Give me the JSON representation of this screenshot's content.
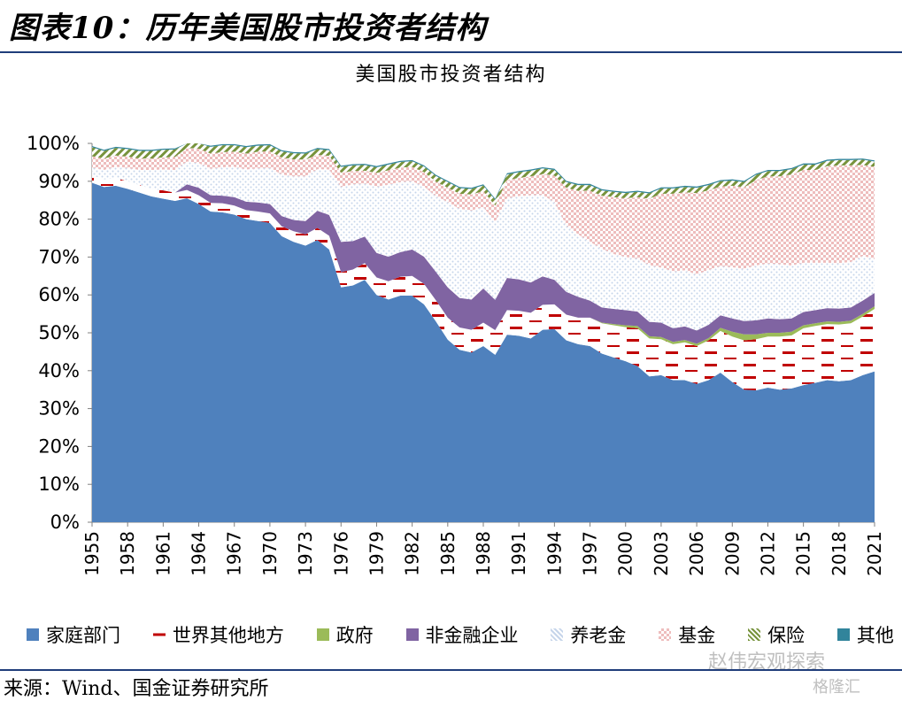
{
  "header": {
    "title": "图表10：历年美国股市投资者结构"
  },
  "source": "来源：Wind、国金证券研究所",
  "watermark": {
    "text": "赵伟宏观探索",
    "logo": "格隆汇"
  },
  "chart_data": {
    "type": "area",
    "stacked": true,
    "title": "美国股市投资者结构",
    "xlabel": "",
    "ylabel": "",
    "ylim": [
      0,
      100
    ],
    "y_ticks": [
      "0%",
      "10%",
      "20%",
      "30%",
      "40%",
      "50%",
      "60%",
      "70%",
      "80%",
      "90%",
      "100%"
    ],
    "x_ticks": [
      "1955",
      "1958",
      "1961",
      "1964",
      "1967",
      "1970",
      "1973",
      "1976",
      "1979",
      "1982",
      "1985",
      "1988",
      "1991",
      "1994",
      "1997",
      "2000",
      "2003",
      "2006",
      "2009",
      "2012",
      "2015",
      "2018",
      "2021"
    ],
    "legend_position": "bottom",
    "x_start": 1955,
    "x_end": 2021,
    "series": [
      {
        "name": "家庭部门",
        "color": "#4f81bd",
        "pattern": "solid",
        "values": [
          89.6,
          88.5,
          88.8,
          88,
          87,
          86,
          85.4,
          84.8,
          85.5,
          84,
          82,
          81.8,
          81.2,
          80,
          79.5,
          79,
          75.5,
          74,
          73,
          74.5,
          72,
          62,
          62.5,
          64,
          60,
          58.8,
          59.8,
          59.8,
          57.5,
          53,
          48.2,
          45.5,
          44.8,
          46.5,
          44.2,
          49.5,
          49.2,
          48.5,
          50.8,
          51,
          48,
          47,
          46.5,
          44.5,
          43.5,
          42.5,
          41.2,
          38.5,
          38.8,
          37.5,
          37.5,
          36.5,
          37.5,
          39.5,
          37,
          35,
          34.8,
          35.5,
          35,
          35.3,
          36.2,
          36.8,
          37.5,
          37.2,
          37.5,
          38.8,
          39.8
        ]
      },
      {
        "name": "世界其他地方",
        "color": "#c00000",
        "pattern": "dash",
        "values": [
          2,
          2,
          2,
          2,
          2,
          2,
          2.2,
          2.2,
          2.2,
          2.3,
          2.3,
          2.4,
          2.4,
          2.4,
          2.5,
          2.5,
          2.6,
          2.8,
          3,
          3.2,
          3.6,
          4,
          4.2,
          4.4,
          4.6,
          4.8,
          5,
          5.2,
          5.4,
          5.6,
          5.8,
          5.9,
          6,
          6.2,
          6.5,
          6.5,
          6.6,
          6.8,
          6.6,
          6.5,
          6.8,
          7,
          7.5,
          8,
          8.5,
          9,
          10,
          10,
          9.5,
          9.5,
          10,
          10,
          10.5,
          11,
          12,
          13,
          13.5,
          13.5,
          14,
          14,
          15,
          15,
          14.8,
          15,
          15,
          15.5,
          16.5
        ]
      },
      {
        "name": "政府",
        "color": "#9bbb59",
        "pattern": "solid",
        "values": [
          0,
          0,
          0,
          0,
          0,
          0,
          0,
          0,
          0,
          0,
          0,
          0,
          0,
          0,
          0,
          0,
          0,
          0,
          0,
          0,
          0,
          0,
          0,
          0,
          0,
          0,
          0,
          0,
          0,
          0,
          0,
          0,
          0,
          0,
          0,
          0,
          0,
          0,
          0,
          0,
          0,
          0,
          0,
          0.2,
          0.3,
          0.5,
          0.6,
          0.6,
          0.6,
          0.6,
          0.6,
          0.6,
          0.6,
          0.8,
          1.3,
          1.6,
          1.3,
          1,
          1,
          1,
          0.8,
          0.7,
          0.7,
          0.7,
          0.7,
          0.7,
          0.7
        ]
      },
      {
        "name": "非金融企业",
        "color": "#8064a2",
        "pattern": "solid",
        "values": [
          0,
          0,
          0,
          0,
          0,
          0,
          0,
          0,
          1.5,
          2,
          2,
          2,
          2.2,
          2.2,
          2.4,
          2.5,
          2.7,
          3,
          3.5,
          4.5,
          5.5,
          8,
          7.5,
          7,
          6.5,
          6.5,
          6.5,
          7,
          7.2,
          7.5,
          8,
          7.8,
          8,
          9,
          8,
          8.5,
          8.3,
          8,
          7.5,
          6.5,
          6,
          5.5,
          4.5,
          4,
          4,
          4,
          3.8,
          3.8,
          3.8,
          3.6,
          3.6,
          3.5,
          3.5,
          3.3,
          3.5,
          3.5,
          3.7,
          3.8,
          3.6,
          3.5,
          3.5,
          3.5,
          3.5,
          3.5,
          3.5,
          3.5,
          3.5
        ]
      },
      {
        "name": "养老金",
        "color": "#dce6f2",
        "pattern": "dots-blue",
        "values": [
          2,
          2.5,
          3,
          3.5,
          4,
          5,
          5.5,
          6,
          6,
          6.5,
          7,
          7.5,
          8,
          8.5,
          9,
          9.5,
          11,
          11.5,
          11.8,
          11,
          12,
          14.5,
          15,
          14,
          17.5,
          19,
          18.5,
          18,
          18.5,
          20,
          22.5,
          23.5,
          23.5,
          21.5,
          20.5,
          21,
          22,
          23,
          21.5,
          20.5,
          17.5,
          16.5,
          15.5,
          15.5,
          14.5,
          14,
          14,
          15,
          14.5,
          15,
          14.8,
          14.8,
          14.5,
          13,
          13.5,
          13.8,
          14.5,
          14.5,
          14.5,
          14,
          13,
          12.5,
          12,
          12,
          12,
          11.8,
          9
        ]
      },
      {
        "name": "基金",
        "color": "#f2dcdb",
        "pattern": "checker-red",
        "values": [
          3,
          3,
          3,
          3,
          3,
          3,
          3.2,
          3.4,
          3.6,
          3.8,
          4,
          4,
          4,
          4.2,
          4.4,
          4.4,
          4.5,
          4.5,
          4.4,
          3.8,
          3.6,
          3.8,
          3.5,
          3.4,
          3.6,
          3.8,
          3.8,
          3.8,
          3.8,
          3.8,
          3.8,
          4,
          4.2,
          4.2,
          4.4,
          4.8,
          4.8,
          5,
          5.5,
          7,
          10,
          11.5,
          13.5,
          14,
          15,
          15.5,
          16.2,
          17.5,
          19.5,
          20.5,
          20.6,
          21.5,
          21,
          21,
          21.5,
          21.5,
          22.5,
          23,
          23.2,
          24,
          24.5,
          24.5,
          25.5,
          25.8,
          25.5,
          24,
          24.3
        ]
      },
      {
        "name": "保险",
        "color": "#77933c",
        "pattern": "diag-green",
        "values": [
          2.4,
          2,
          2,
          2,
          2,
          2,
          2,
          2,
          1.8,
          1.8,
          1.8,
          1.8,
          1.7,
          1.7,
          1.6,
          1.6,
          1.6,
          1.6,
          1.6,
          1.5,
          1.5,
          1.5,
          1.5,
          1.5,
          1.5,
          1.5,
          1.5,
          1.5,
          1.5,
          1.5,
          1.5,
          1.5,
          1.5,
          1.5,
          1.5,
          1.5,
          1.5,
          1.5,
          1.5,
          1.5,
          1.5,
          1.5,
          1.5,
          1.4,
          1.4,
          1.4,
          1.4,
          1.4,
          1.4,
          1.4,
          1.4,
          1.4,
          1.4,
          1.4,
          1.4,
          1.4,
          1.4,
          1.4,
          1.4,
          1.4,
          1.4,
          1.4,
          1.4,
          1.4,
          1.4,
          1.4,
          1.4
        ]
      },
      {
        "name": "其他",
        "color": "#31849b",
        "pattern": "solid",
        "values": [
          0.3,
          0.3,
          0.3,
          0.3,
          0.3,
          0.3,
          0.3,
          0.3,
          0.3,
          0.3,
          0.3,
          0.3,
          0.3,
          0.3,
          0.3,
          0.3,
          0.3,
          0.3,
          0.3,
          0.3,
          0.3,
          0.3,
          0.3,
          0.3,
          0.3,
          0.3,
          0.3,
          0.3,
          0.3,
          0.3,
          0.3,
          0.3,
          0.3,
          0.3,
          0.3,
          0.3,
          0.3,
          0.3,
          0.3,
          0.3,
          0.3,
          0.3,
          0.3,
          0.3,
          0.3,
          0.3,
          0.3,
          0.3,
          0.3,
          0.3,
          0.3,
          0.3,
          0.3,
          0.3,
          0.3,
          0.3,
          0.3,
          0.3,
          0.3,
          0.3,
          0.3,
          0.3,
          0.3,
          0.3,
          0.3,
          0.3,
          0.3
        ]
      }
    ]
  }
}
